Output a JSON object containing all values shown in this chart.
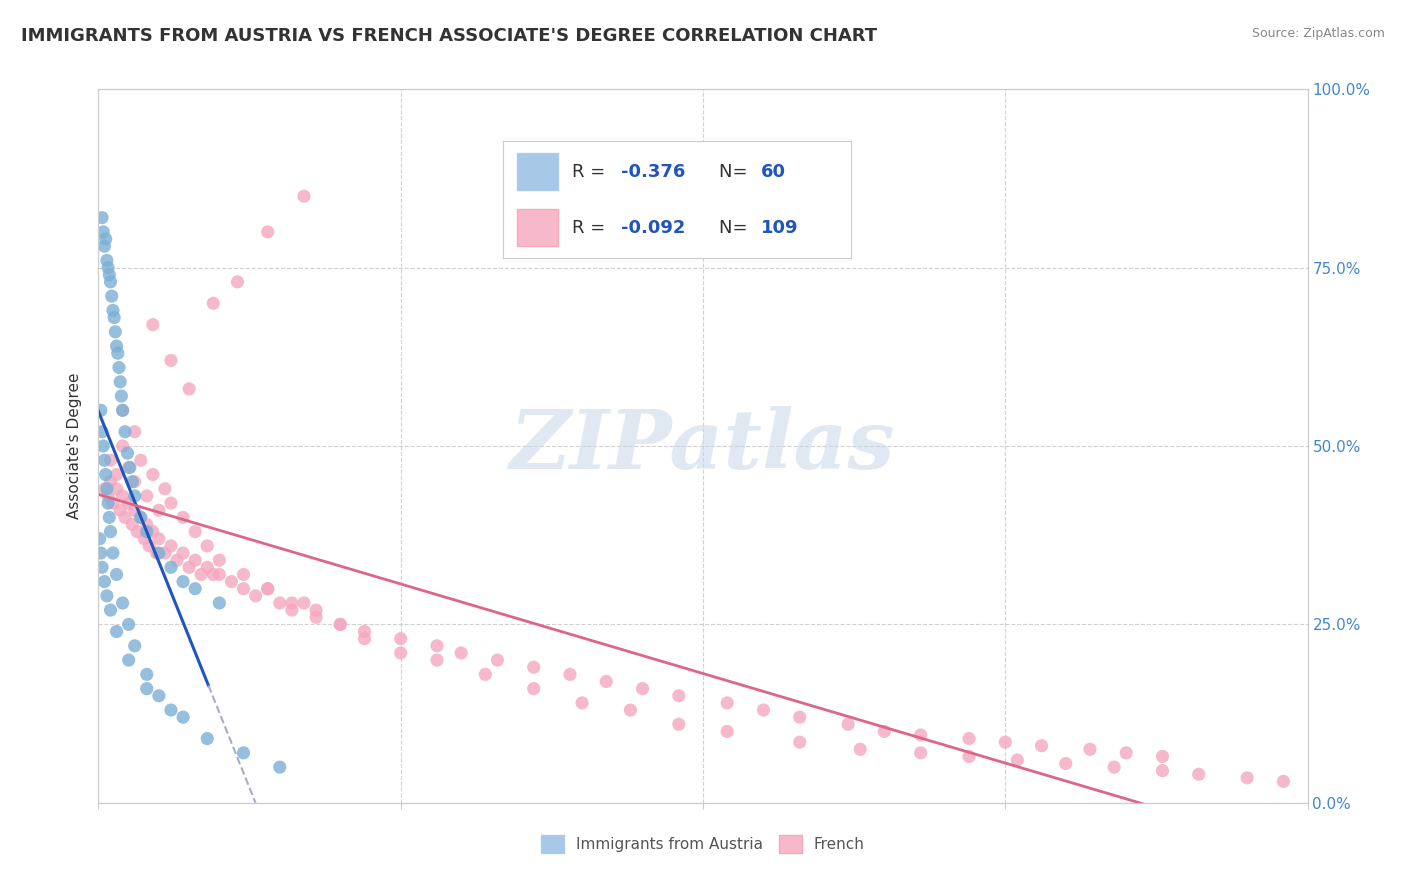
{
  "title": "IMMIGRANTS FROM AUSTRIA VS FRENCH ASSOCIATE'S DEGREE CORRELATION CHART",
  "source_text": "Source: ZipAtlas.com",
  "ylabel": "Associate's Degree",
  "watermark": "ZIPatlas",
  "blue_scatter_color": "#7bafd4",
  "pink_scatter_color": "#f4a8bf",
  "trendline_blue": "#2255bb",
  "trendline_pink": "#dd6688",
  "trendline_blue_ext": "#aaaacc",
  "blue_legend_color": "#a8c8e8",
  "pink_legend_color": "#f8b8cc",
  "xlim": [
    0.0,
    100.0
  ],
  "ylim": [
    0.0,
    100.0
  ],
  "background_color": "#ffffff",
  "grid_color": "#cccccc",
  "title_fontsize": 13,
  "axis_fontsize": 11,
  "legend_fontsize": 13,
  "tick_color": "#4488cc",
  "austria_seed_x": [
    0.3,
    0.4,
    0.5,
    0.6,
    0.7,
    0.8,
    0.9,
    1.0,
    1.1,
    1.2,
    1.3,
    1.4,
    1.5,
    1.6,
    1.7,
    1.8,
    1.9,
    2.0,
    2.2,
    2.4,
    2.6,
    2.8,
    3.0,
    3.5,
    4.0,
    5.0,
    6.0,
    7.0,
    8.0,
    10.0,
    0.2,
    0.3,
    0.4,
    0.5,
    0.6,
    0.7,
    0.8,
    0.9,
    1.0,
    1.2,
    1.5,
    2.0,
    2.5,
    3.0,
    4.0,
    5.0,
    7.0,
    9.0,
    12.0,
    15.0,
    0.1,
    0.2,
    0.3,
    0.5,
    0.7,
    1.0,
    1.5,
    2.5,
    4.0,
    6.0
  ],
  "austria_seed_y": [
    82.0,
    80.0,
    78.0,
    79.0,
    76.0,
    75.0,
    74.0,
    73.0,
    71.0,
    69.0,
    68.0,
    66.0,
    64.0,
    63.0,
    61.0,
    59.0,
    57.0,
    55.0,
    52.0,
    49.0,
    47.0,
    45.0,
    43.0,
    40.0,
    38.0,
    35.0,
    33.0,
    31.0,
    30.0,
    28.0,
    55.0,
    52.0,
    50.0,
    48.0,
    46.0,
    44.0,
    42.0,
    40.0,
    38.0,
    35.0,
    32.0,
    28.0,
    25.0,
    22.0,
    18.0,
    15.0,
    12.0,
    9.0,
    7.0,
    5.0,
    37.0,
    35.0,
    33.0,
    31.0,
    29.0,
    27.0,
    24.0,
    20.0,
    16.0,
    13.0
  ],
  "french_seed_x": [
    0.5,
    0.8,
    1.0,
    1.2,
    1.5,
    1.8,
    2.0,
    2.2,
    2.5,
    2.8,
    3.0,
    3.2,
    3.5,
    3.8,
    4.0,
    4.2,
    4.5,
    4.8,
    5.0,
    5.5,
    6.0,
    6.5,
    7.0,
    7.5,
    8.0,
    8.5,
    9.0,
    9.5,
    10.0,
    11.0,
    12.0,
    13.0,
    14.0,
    15.0,
    16.0,
    17.0,
    18.0,
    20.0,
    22.0,
    25.0,
    28.0,
    30.0,
    33.0,
    36.0,
    39.0,
    42.0,
    45.0,
    48.0,
    52.0,
    55.0,
    58.0,
    62.0,
    65.0,
    68.0,
    72.0,
    75.0,
    78.0,
    82.0,
    85.0,
    88.0,
    1.0,
    1.5,
    2.0,
    2.5,
    3.0,
    3.5,
    4.0,
    4.5,
    5.0,
    5.5,
    6.0,
    7.0,
    8.0,
    9.0,
    10.0,
    12.0,
    14.0,
    16.0,
    18.0,
    20.0,
    22.0,
    25.0,
    28.0,
    32.0,
    36.0,
    40.0,
    44.0,
    48.0,
    52.0,
    58.0,
    63.0,
    68.0,
    72.0,
    76.0,
    80.0,
    84.0,
    88.0,
    91.0,
    95.0,
    98.0,
    2.0,
    3.0,
    4.5,
    6.0,
    7.5,
    9.5,
    11.5,
    14.0,
    17.0
  ],
  "french_seed_y": [
    44.0,
    43.0,
    45.0,
    42.0,
    44.0,
    41.0,
    43.0,
    40.0,
    42.0,
    39.0,
    41.0,
    38.0,
    40.0,
    37.0,
    39.0,
    36.0,
    38.0,
    35.0,
    37.0,
    35.0,
    36.0,
    34.0,
    35.0,
    33.0,
    34.0,
    32.0,
    33.0,
    32.0,
    32.0,
    31.0,
    30.0,
    29.0,
    30.0,
    28.0,
    27.0,
    28.0,
    26.0,
    25.0,
    24.0,
    23.0,
    22.0,
    21.0,
    20.0,
    19.0,
    18.0,
    17.0,
    16.0,
    15.0,
    14.0,
    13.0,
    12.0,
    11.0,
    10.0,
    9.5,
    9.0,
    8.5,
    8.0,
    7.5,
    7.0,
    6.5,
    48.0,
    46.0,
    50.0,
    47.0,
    45.0,
    48.0,
    43.0,
    46.0,
    41.0,
    44.0,
    42.0,
    40.0,
    38.0,
    36.0,
    34.0,
    32.0,
    30.0,
    28.0,
    27.0,
    25.0,
    23.0,
    21.0,
    20.0,
    18.0,
    16.0,
    14.0,
    13.0,
    11.0,
    10.0,
    8.5,
    7.5,
    7.0,
    6.5,
    6.0,
    5.5,
    5.0,
    4.5,
    4.0,
    3.5,
    3.0,
    55.0,
    52.0,
    67.0,
    62.0,
    58.0,
    70.0,
    73.0,
    80.0,
    85.0
  ]
}
